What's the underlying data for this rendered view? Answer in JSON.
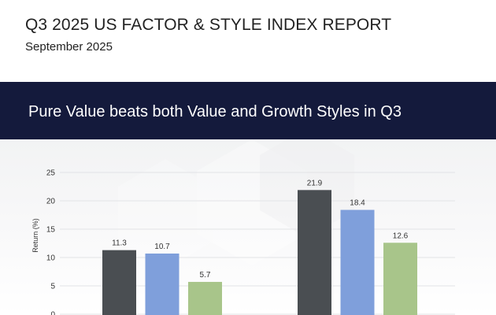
{
  "header": {
    "title": "Q3 2025 US FACTOR & STYLE INDEX REPORT",
    "date": "September 2025"
  },
  "banner": {
    "title": "Pure Value beats both Value and Growth Styles in Q3"
  },
  "colors": {
    "banner_bg": "#141a3c",
    "series": [
      "#4a4e52",
      "#7f9fdb",
      "#a8c58a"
    ]
  },
  "chart_data": {
    "type": "bar",
    "ylabel": "Return (%)",
    "ylim": [
      0,
      25
    ],
    "yticks": [
      "0",
      "5",
      "10",
      "15",
      "20",
      "25"
    ],
    "grid": true,
    "groups": [
      {
        "values": [
          11.3,
          10.7,
          5.7
        ],
        "labels": [
          "11.3",
          "10.7",
          "5.7"
        ]
      },
      {
        "values": [
          21.9,
          18.4,
          12.6
        ],
        "labels": [
          "21.9",
          "18.4",
          "12.6"
        ]
      }
    ]
  }
}
